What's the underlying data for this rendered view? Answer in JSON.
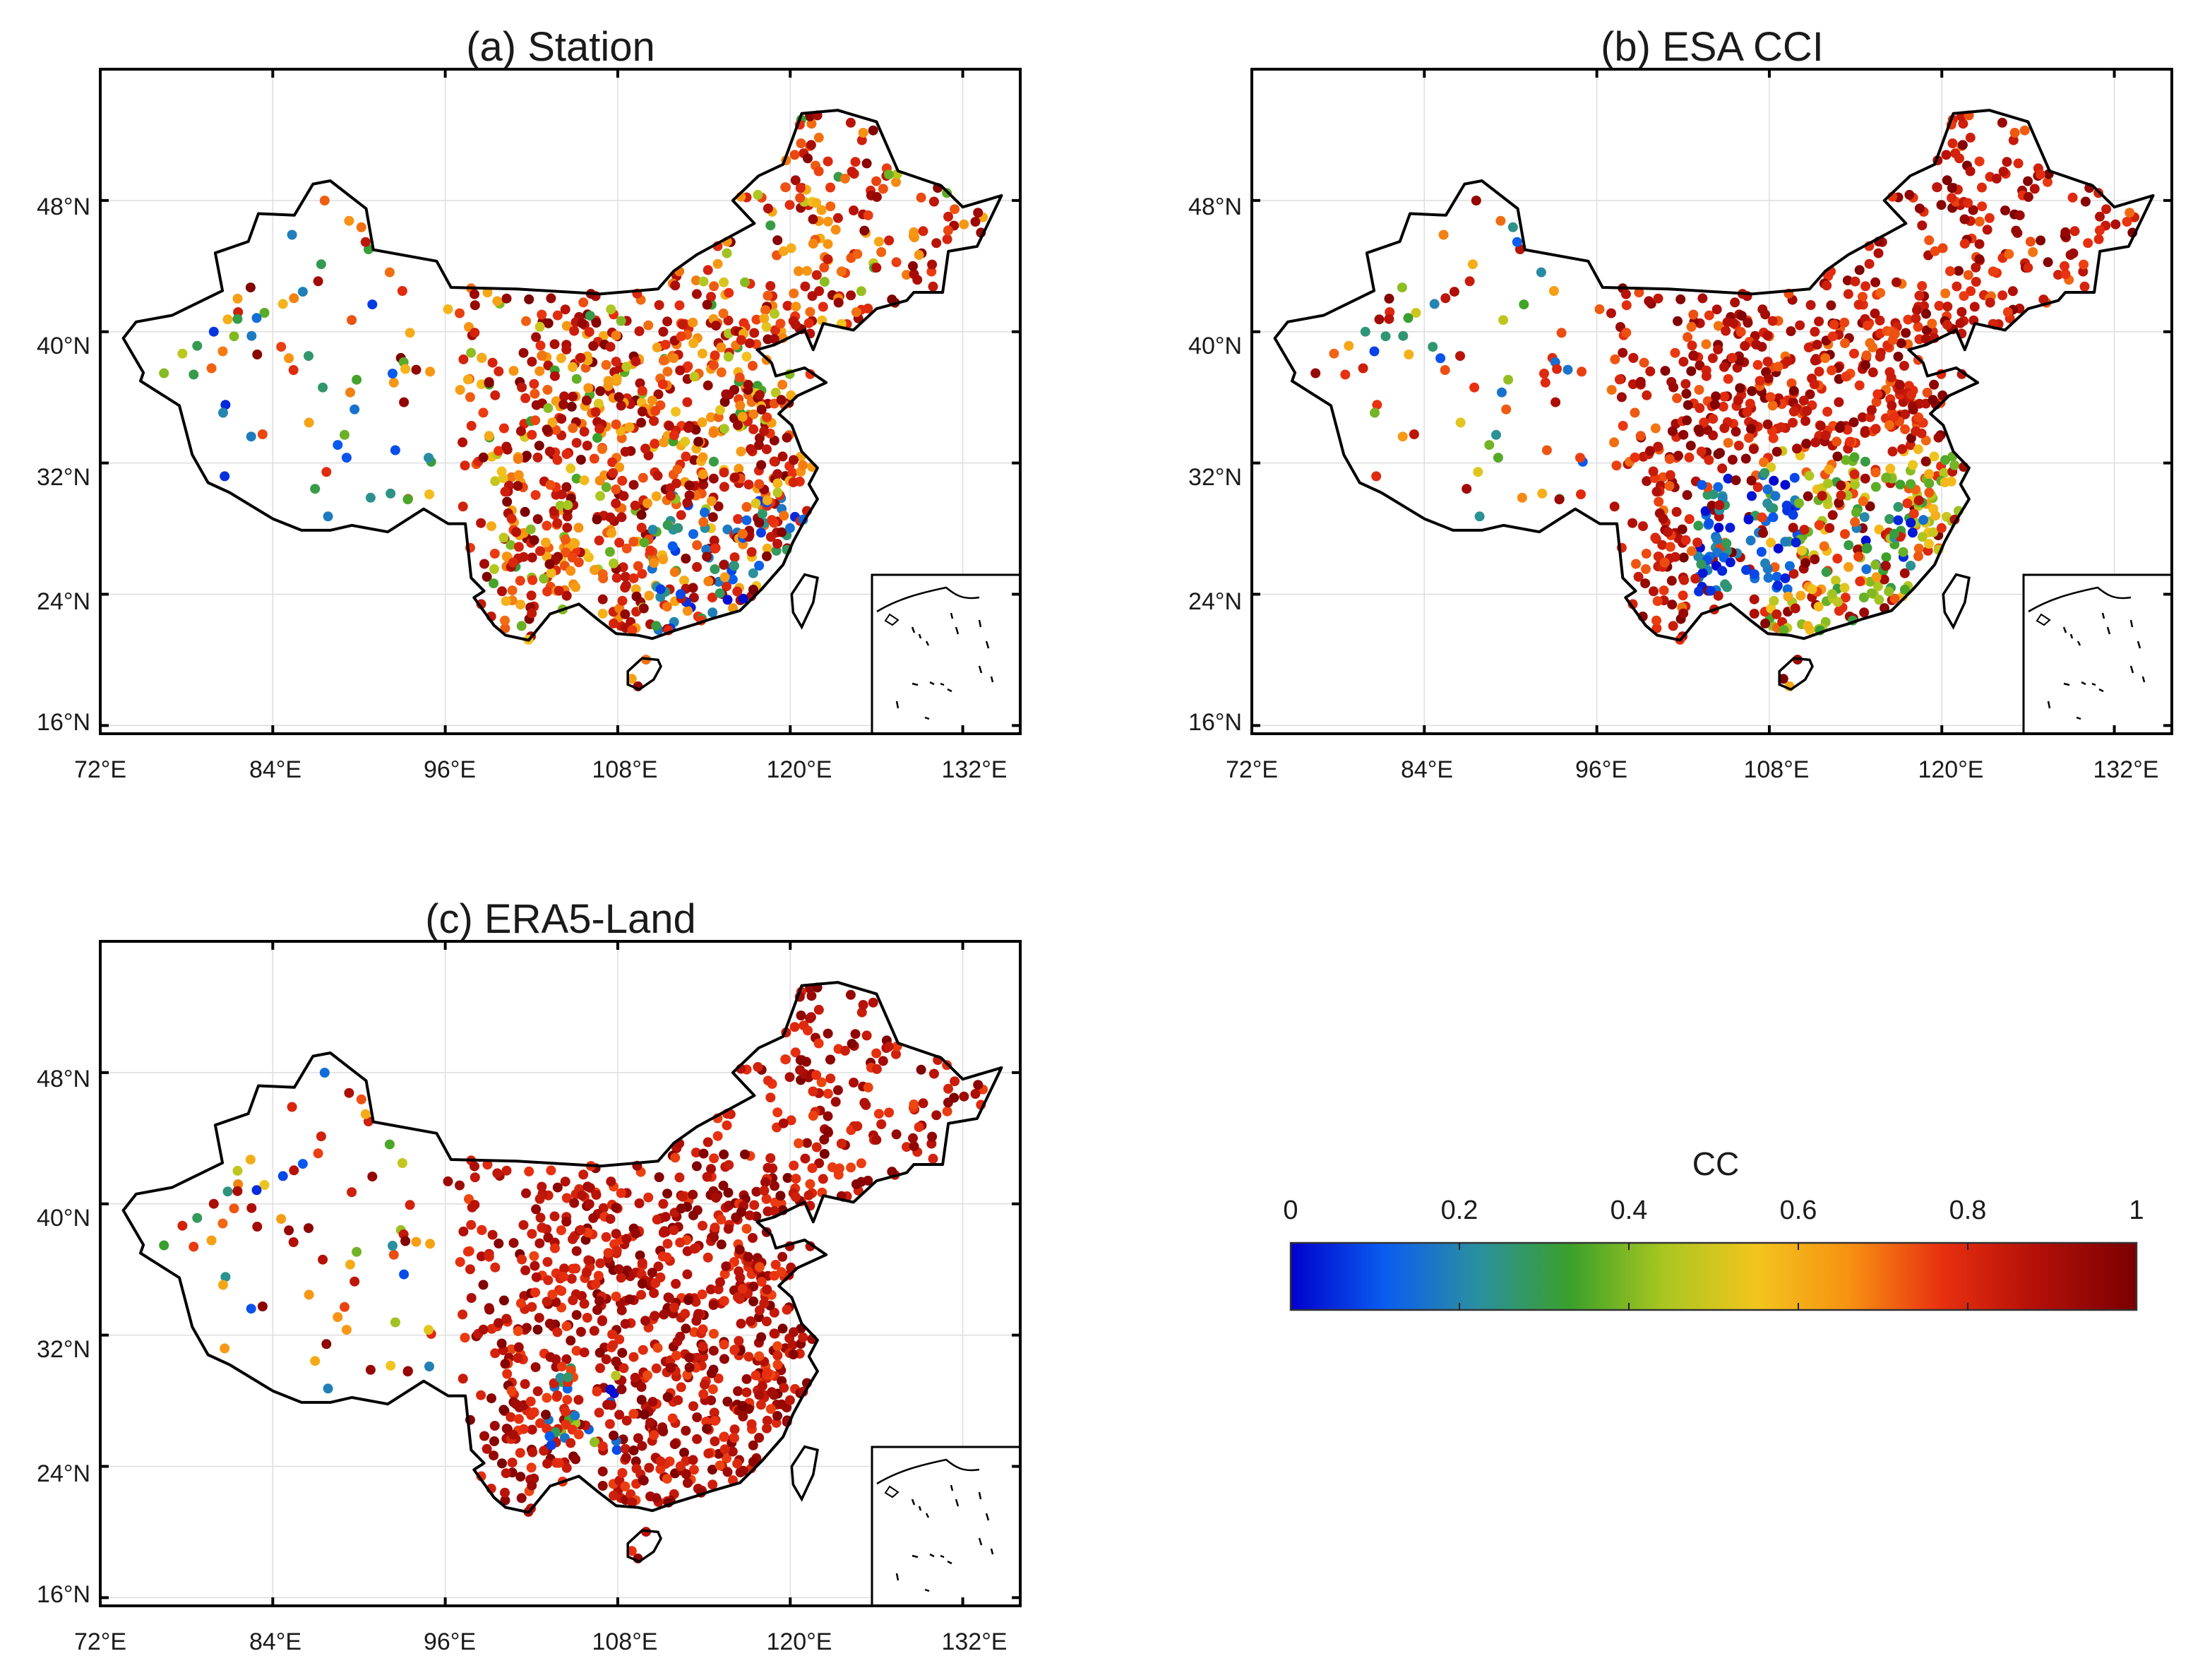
{
  "figure": {
    "colors": {
      "colormap": [
        "#0000cc",
        "#0a5cf0",
        "#2a8fa0",
        "#3aa02a",
        "#a8c620",
        "#f2c51e",
        "#f79212",
        "#e83010",
        "#b41008",
        "#7a0000"
      ],
      "border": "#000000",
      "grid": "#dddddd",
      "text": "#1a1a1a"
    }
  },
  "chart_data": [
    {
      "id": "a",
      "type": "map-scatter",
      "title": "(a) Station",
      "x_ticks": [
        "72°E",
        "84°E",
        "96°E",
        "108°E",
        "120°E",
        "132°E"
      ],
      "y_ticks": [
        "16°N",
        "24°N",
        "32°N",
        "40°N",
        "48°N"
      ],
      "xlim": [
        72,
        136
      ],
      "ylim": [
        15.5,
        56
      ],
      "variable": "CC",
      "value_summary": "Mixed correlations; many high values (0.7-1) in east, scattered low values (0-0.3) across south and northwest",
      "inset": "South China Sea islands"
    },
    {
      "id": "b",
      "type": "map-scatter",
      "title": "(b) ESA CCI",
      "x_ticks": [
        "72°E",
        "84°E",
        "96°E",
        "108°E",
        "120°E",
        "132°E"
      ],
      "y_ticks": [
        "16°N",
        "24°N",
        "32°N",
        "40°N",
        "48°N"
      ],
      "xlim": [
        72,
        136
      ],
      "ylim": [
        15.5,
        56
      ],
      "variable": "CC",
      "value_summary": "High in north and northeast; clusters of low values (0-0.3) in Sichuan-Guizhou region and southeast",
      "inset": "South China Sea islands"
    },
    {
      "id": "c",
      "type": "map-scatter",
      "title": "(c) ERA5-Land",
      "x_ticks": [
        "72°E",
        "84°E",
        "96°E",
        "108°E",
        "120°E",
        "132°E"
      ],
      "y_ticks": [
        "16°N",
        "24°N",
        "32°N",
        "40°N",
        "48°N"
      ],
      "xlim": [
        72,
        136
      ],
      "ylim": [
        15.5,
        56
      ],
      "variable": "CC",
      "value_summary": "Predominantly high (0.8-1) across east; few low values in west and Sichuan basin",
      "inset": "South China Sea islands"
    }
  ],
  "colorbar": {
    "label": "CC",
    "ticks": [
      "0",
      "0.2",
      "0.4",
      "0.6",
      "0.8",
      "1"
    ],
    "range": [
      0,
      1
    ],
    "orientation": "horizontal"
  }
}
